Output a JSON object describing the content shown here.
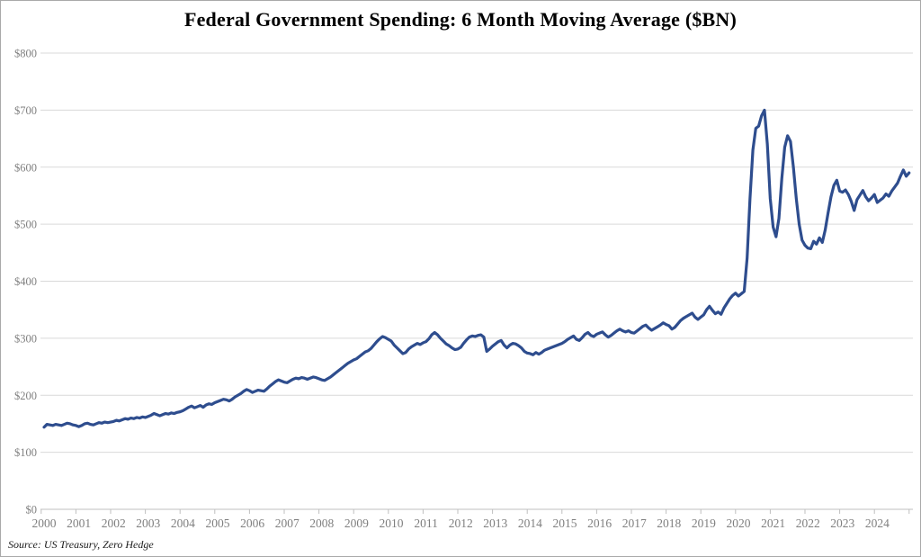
{
  "chart": {
    "title": "Federal Government Spending: 6 Month Moving Average ($BN)",
    "source": "Source: US Treasury, Zero Hedge"
  },
  "chart_data": {
    "type": "line",
    "title": "Federal Government Spending: 6 Month Moving Average ($BN)",
    "xlabel": "",
    "ylabel": "",
    "ylim": [
      0,
      800
    ],
    "y_ticks": [
      0,
      100,
      200,
      300,
      400,
      500,
      600,
      700,
      800
    ],
    "y_tick_labels": [
      "$0",
      "$100",
      "$200",
      "$300",
      "$400",
      "$500",
      "$600",
      "$700",
      "$800"
    ],
    "x_tick_labels": [
      "2000",
      "2001",
      "2002",
      "2003",
      "2004",
      "2005",
      "2006",
      "2007",
      "2008",
      "2009",
      "2010",
      "2011",
      "2012",
      "2013",
      "2014",
      "2015",
      "2016",
      "2017",
      "2018",
      "2019",
      "2020",
      "2021",
      "2022",
      "2023",
      "2024"
    ],
    "grid": "horizontal",
    "legend": "none",
    "line_color": "#2e4d8e",
    "grid_color": "#d9d9d9",
    "axis_color": "#bfbfbf",
    "source": "Source: US Treasury, Zero Hedge",
    "series": [
      {
        "name": "Federal Government Spending 6-Month Moving Average ($BN)",
        "frequency": "monthly",
        "x_start": "2000-01",
        "x_end": "2024-12",
        "values": [
          144,
          149,
          148,
          147,
          149,
          148,
          147,
          149,
          151,
          150,
          148,
          147,
          145,
          147,
          150,
          151,
          149,
          148,
          150,
          152,
          151,
          153,
          152,
          153,
          154,
          156,
          155,
          157,
          159,
          158,
          160,
          159,
          161,
          160,
          162,
          161,
          163,
          165,
          168,
          166,
          164,
          166,
          168,
          167,
          169,
          168,
          170,
          171,
          173,
          176,
          179,
          181,
          178,
          180,
          182,
          179,
          183,
          185,
          184,
          187,
          189,
          191,
          193,
          192,
          190,
          193,
          197,
          200,
          203,
          207,
          210,
          208,
          205,
          207,
          209,
          208,
          207,
          211,
          216,
          220,
          224,
          227,
          225,
          223,
          222,
          225,
          228,
          230,
          229,
          231,
          230,
          228,
          230,
          232,
          231,
          229,
          227,
          226,
          229,
          232,
          236,
          240,
          244,
          248,
          252,
          256,
          259,
          262,
          264,
          268,
          272,
          276,
          278,
          282,
          288,
          294,
          299,
          303,
          301,
          298,
          295,
          288,
          283,
          278,
          273,
          275,
          281,
          285,
          288,
          291,
          289,
          292,
          294,
          299,
          306,
          310,
          306,
          300,
          295,
          290,
          287,
          283,
          280,
          281,
          284,
          291,
          297,
          302,
          304,
          303,
          305,
          306,
          302,
          277,
          281,
          286,
          290,
          294,
          296,
          288,
          283,
          288,
          291,
          290,
          287,
          283,
          277,
          274,
          273,
          271,
          275,
          272,
          275,
          279,
          281,
          283,
          285,
          287,
          289,
          291,
          294,
          298,
          301,
          304,
          298,
          296,
          301,
          307,
          310,
          305,
          303,
          307,
          309,
          311,
          306,
          302,
          305,
          309,
          313,
          316,
          313,
          311,
          313,
          310,
          309,
          313,
          317,
          321,
          323,
          318,
          314,
          317,
          320,
          323,
          327,
          324,
          322,
          316,
          319,
          325,
          331,
          335,
          338,
          341,
          344,
          337,
          333,
          337,
          341,
          350,
          356,
          349,
          343,
          346,
          342,
          353,
          361,
          369,
          375,
          379,
          374,
          378,
          382,
          440,
          545,
          630,
          668,
          672,
          690,
          700,
          640,
          545,
          495,
          478,
          510,
          580,
          635,
          655,
          645,
          600,
          545,
          500,
          472,
          463,
          458,
          457,
          470,
          465,
          476,
          468,
          490,
          520,
          548,
          568,
          577,
          558,
          556,
          560,
          552,
          540,
          524,
          543,
          551,
          559,
          548,
          541,
          546,
          552,
          538,
          542,
          546,
          553,
          549,
          558,
          565,
          572,
          584,
          595,
          584,
          590
        ]
      }
    ]
  }
}
